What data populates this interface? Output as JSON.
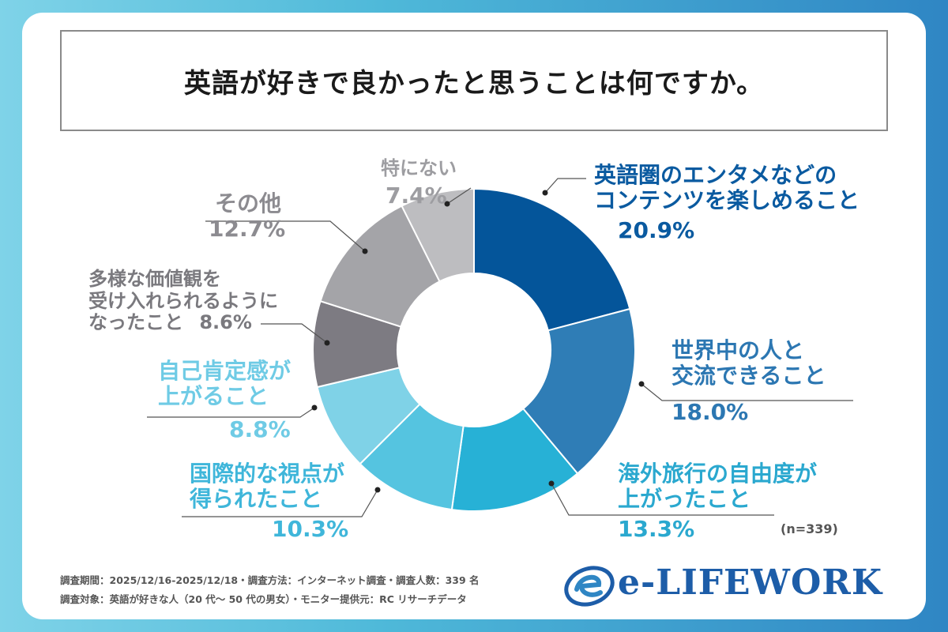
{
  "title": "英語が好きで良かったと思うことは何ですか。",
  "sample_note": "(n=339)",
  "footer": {
    "line1": "調査期間：2025/12/16-2025/12/18・調査方法：インターネット調査・調査人数：339 名",
    "line2": "調査対象：英語が好きな人（20 代～ 50 代の男女）・モニター提供元：RC リサーチデータ"
  },
  "logo": {
    "text": "e-LIFEWORK"
  },
  "colors": {
    "c1": "#04559a",
    "c2": "#2f7db6",
    "c3": "#27b1d6",
    "c4": "#55c4e0",
    "c5": "#7fd2e7",
    "c6": "#7d7b82",
    "c7": "#a4a4a8",
    "c8": "#bdbdc0"
  },
  "chart_data": {
    "type": "pie",
    "title": "英語が好きで良かったと思うことは何ですか。",
    "categories": [
      "英語圏のエンタメなどのコンテンツを楽しめること",
      "世界中の人と交流できること",
      "海外旅行の自由度が上がったこと",
      "国際的な視点が得られたこと",
      "自己肯定感が上がること",
      "多様な価値観を受け入れられるようになったこと",
      "その他",
      "特にない"
    ],
    "values": [
      20.9,
      18.0,
      13.3,
      10.3,
      8.8,
      8.6,
      12.7,
      7.4
    ],
    "labels": [
      {
        "name": [
          "英語圏のエンタメなどの",
          "コンテンツを楽しめること"
        ],
        "pct": "20.9%"
      },
      {
        "name": [
          "世界中の人と",
          "交流できること"
        ],
        "pct": "18.0%"
      },
      {
        "name": [
          "海外旅行の自由度が",
          "上がったこと"
        ],
        "pct": "13.3%"
      },
      {
        "name": [
          "国際的な視点が",
          "得られたこと"
        ],
        "pct": "10.3%"
      },
      {
        "name": [
          "自己肯定感が",
          "上がること"
        ],
        "pct": "8.8%"
      },
      {
        "name": [
          "多様な価値観を",
          "受け入れられるように",
          "なったこと"
        ],
        "pct": "8.6%"
      },
      {
        "name": [
          "その他"
        ],
        "pct": "12.7%"
      },
      {
        "name": [
          "特にない"
        ],
        "pct": "7.4%"
      }
    ],
    "legend": "none",
    "start": "top, clockwise"
  }
}
